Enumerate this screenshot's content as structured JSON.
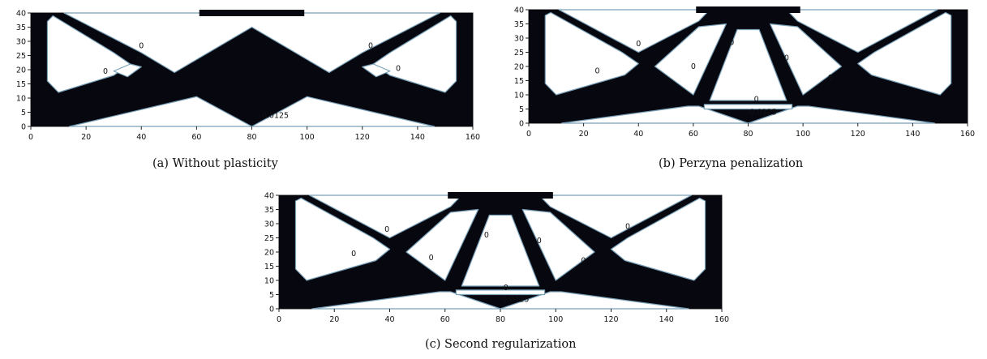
{
  "figure": {
    "x_ticks": [
      "0",
      "20",
      "40",
      "60",
      "80",
      "100",
      "120",
      "140",
      "160"
    ],
    "y_ticks": [
      "0",
      "5",
      "10",
      "15",
      "20",
      "25",
      "30",
      "35",
      "40"
    ],
    "panels": [
      {
        "id": "a",
        "caption": "(a) Without plasticity",
        "contour_labels": [
          "0",
          "0",
          "0",
          "0",
          "0",
          "-0.0125"
        ]
      },
      {
        "id": "b",
        "caption": "(b) Perzyna penalization",
        "contour_labels": [
          "0",
          "0",
          "0",
          "0",
          "0",
          "0",
          "0",
          "0",
          "-0.0125"
        ]
      },
      {
        "id": "c",
        "caption": "(c) Second regularization",
        "contour_labels": [
          "0",
          "0",
          "0",
          "0",
          "0",
          "0",
          "0",
          "0",
          "-0.0125"
        ]
      }
    ],
    "colors": {
      "material": "#070710",
      "void": "#ffffff",
      "edge": "#7aa1b8",
      "axis": "#222222"
    }
  }
}
